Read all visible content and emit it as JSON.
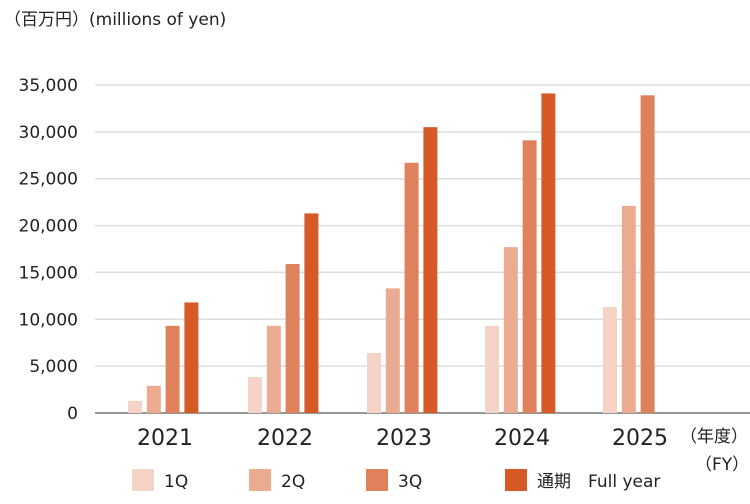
{
  "chart_data": {
    "type": "bar",
    "title": "",
    "unit_label": "（百万円）(millions of yen)",
    "xlabel": "（年度）\n（FY）",
    "xlabel_line1": "（年度）",
    "xlabel_line2": "（FY）",
    "ylabel": "",
    "ylim": [
      0,
      35000
    ],
    "yticks": [
      "0",
      "5,000",
      "10,000",
      "15,000",
      "20,000",
      "25,000",
      "30,000",
      "35,000"
    ],
    "grid": true,
    "legend_position": "bottom",
    "categories": [
      "2021",
      "2022",
      "2023",
      "2024",
      "2025"
    ],
    "series": [
      {
        "name": "1Q",
        "color": "#f5d3c6",
        "values": [
          1300,
          3850,
          6400,
          9300,
          11300
        ]
      },
      {
        "name": "2Q",
        "color": "#eaab90",
        "values": [
          2900,
          9300,
          13300,
          17700,
          22100
        ]
      },
      {
        "name": "3Q",
        "color": "#df825c",
        "values": [
          9300,
          15900,
          26700,
          29100,
          33900
        ]
      },
      {
        "name": "通期　Full year",
        "color": "#d55a25",
        "values": [
          11800,
          21300,
          30500,
          34100,
          null
        ]
      }
    ]
  }
}
